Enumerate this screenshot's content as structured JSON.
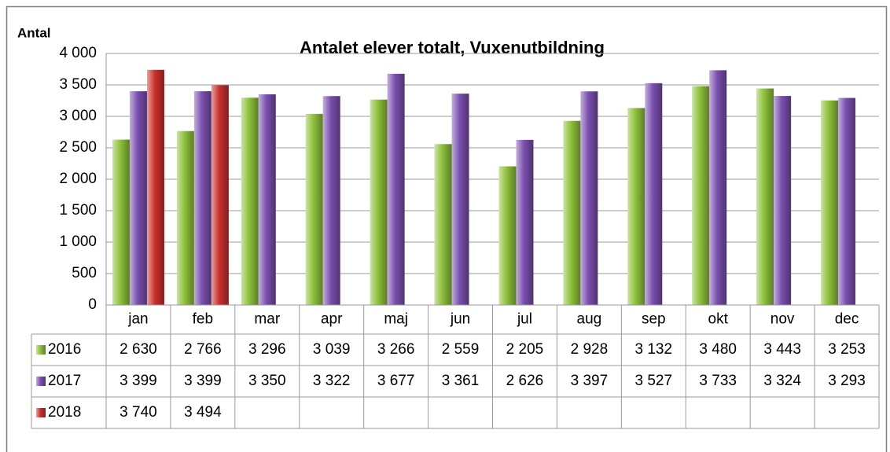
{
  "chart_data": {
    "type": "bar",
    "title": "Antalet elever totalt, Vuxenutbildning",
    "y_label": "Antal",
    "categories": [
      "jan",
      "feb",
      "mar",
      "apr",
      "maj",
      "jun",
      "jul",
      "aug",
      "sep",
      "okt",
      "nov",
      "dec"
    ],
    "series": [
      {
        "name": "2016",
        "color": "#8dc03a",
        "values": [
          2630,
          2766,
          3296,
          3039,
          3266,
          2559,
          2205,
          2928,
          3132,
          3480,
          3443,
          3253
        ],
        "value_labels": [
          "2 630",
          "2 766",
          "3 296",
          "3 039",
          "3 266",
          "2 559",
          "2 205",
          "2 928",
          "3 132",
          "3 480",
          "3 443",
          "3 253"
        ]
      },
      {
        "name": "2017",
        "color": "#7a4fae",
        "values": [
          3399,
          3399,
          3350,
          3322,
          3677,
          3361,
          2626,
          3397,
          3527,
          3733,
          3324,
          3293
        ],
        "value_labels": [
          "3 399",
          "3 399",
          "3 350",
          "3 322",
          "3 677",
          "3 361",
          "2 626",
          "3 397",
          "3 527",
          "3 733",
          "3 324",
          "3 293"
        ]
      },
      {
        "name": "2018",
        "color": "#c9302c",
        "values": [
          3740,
          3494,
          null,
          null,
          null,
          null,
          null,
          null,
          null,
          null,
          null,
          null
        ],
        "value_labels": [
          "3 740",
          "3 494",
          null,
          null,
          null,
          null,
          null,
          null,
          null,
          null,
          null,
          null
        ]
      }
    ],
    "ylim": [
      0,
      4000
    ],
    "yticks": [
      0,
      500,
      {
        "value": 1000,
        "label": "1 000"
      },
      {
        "value": 1500,
        "label": "1 500"
      },
      {
        "value": 2000,
        "label": "2 000"
      },
      {
        "value": 2500,
        "label": "2 500"
      },
      {
        "value": 3000,
        "label": "3 000"
      },
      {
        "value": 3500,
        "label": "3 500"
      },
      {
        "value": 4000,
        "label": "4 000"
      }
    ],
    "grid": true,
    "data_table": true
  }
}
